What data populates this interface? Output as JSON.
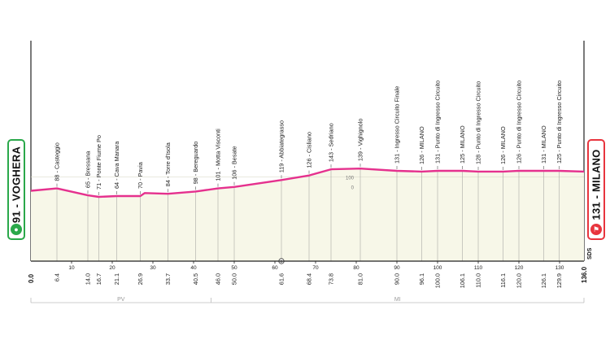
{
  "start": {
    "label": "91 - VOGHERA",
    "color": "#2aa84a",
    "icon": "start-bike-icon"
  },
  "finish": {
    "label": "131 - MILANO",
    "color": "#e8353e",
    "icon": "finish-flag-icon"
  },
  "brand": "SDS",
  "colors": {
    "profile": "#e5318e",
    "fill": "#f7f7e8",
    "axis": "#222222",
    "guide": "#999999"
  },
  "chart_data": {
    "type": "area",
    "xlim": [
      0,
      136.0
    ],
    "ylim": [
      0,
      320
    ],
    "x_ticks": [
      10,
      20,
      30,
      40,
      50,
      60,
      70,
      80,
      90,
      100,
      110,
      120,
      130
    ],
    "start_tick": "0.0",
    "end_tick": "136.0",
    "y_axis_label": "100",
    "y_axis_label_low": "0",
    "profile": {
      "x": [
        0,
        6.4,
        14.0,
        16.7,
        21.1,
        26.9,
        28,
        33.7,
        40.5,
        46.0,
        50.0,
        61.6,
        68.4,
        73.8,
        81.0,
        90.0,
        96.1,
        100.0,
        106.1,
        110.0,
        116.1,
        120.0,
        126.1,
        129.9,
        136.0
      ],
      "y": [
        92,
        95,
        86,
        84,
        85,
        85,
        89,
        88,
        91,
        95,
        97,
        106,
        112,
        120,
        121,
        118,
        117,
        118,
        118,
        117,
        117,
        118,
        118,
        118,
        117
      ]
    },
    "waypoints": [
      {
        "km": 6.4,
        "alt": 88,
        "label": "88 - Casteggio"
      },
      {
        "km": 14.0,
        "alt": 65,
        "label": "65 - Bressana"
      },
      {
        "km": 16.7,
        "alt": 71,
        "label": "71 - Ponte Fiume Po"
      },
      {
        "km": 21.1,
        "alt": 64,
        "label": "64 - Cava Manara"
      },
      {
        "km": 26.9,
        "alt": 70,
        "label": "70 - Pavia"
      },
      {
        "km": 33.7,
        "alt": 84,
        "label": "84 - Torre d'Isola"
      },
      {
        "km": 40.5,
        "alt": 98,
        "label": "98 - Bereguardo"
      },
      {
        "km": 46.0,
        "alt": 101,
        "label": "101 - Motta Visconti"
      },
      {
        "km": 50.0,
        "alt": 106,
        "label": "106 - Besate"
      },
      {
        "km": 61.6,
        "alt": 119,
        "label": "119 - Abbiategrasso",
        "marker": "B"
      },
      {
        "km": 68.4,
        "alt": 126,
        "label": "126 - Cisliano"
      },
      {
        "km": 73.8,
        "alt": 143,
        "label": "143 - Sedriano"
      },
      {
        "km": 81.0,
        "alt": 139,
        "label": "139 - Vighignolo"
      },
      {
        "km": 90.0,
        "alt": 131,
        "label": "131 - Ingresso Circuito Finale"
      },
      {
        "km": 96.1,
        "alt": 126,
        "label": "126 - MILANO"
      },
      {
        "km": 100.0,
        "alt": 131,
        "label": "131 - Punto di Ingresso Circuito"
      },
      {
        "km": 106.1,
        "alt": 125,
        "label": "125 - MILANO"
      },
      {
        "km": 110.0,
        "alt": 128,
        "label": "128 - Punto di Ingresso Circuito"
      },
      {
        "km": 116.1,
        "alt": 126,
        "label": "126 - MILANO"
      },
      {
        "km": 120.0,
        "alt": 126,
        "label": "126 - Punto di Ingresso Circuito"
      },
      {
        "km": 126.1,
        "alt": 131,
        "label": "131 - MILANO"
      },
      {
        "km": 129.9,
        "alt": 125,
        "label": "125 - Punto di Ingresso Circuito"
      }
    ],
    "regions": [
      {
        "label": "PV",
        "from": 0,
        "to": 44.3
      },
      {
        "label": "MI",
        "from": 44.3,
        "to": 136.0
      }
    ]
  }
}
